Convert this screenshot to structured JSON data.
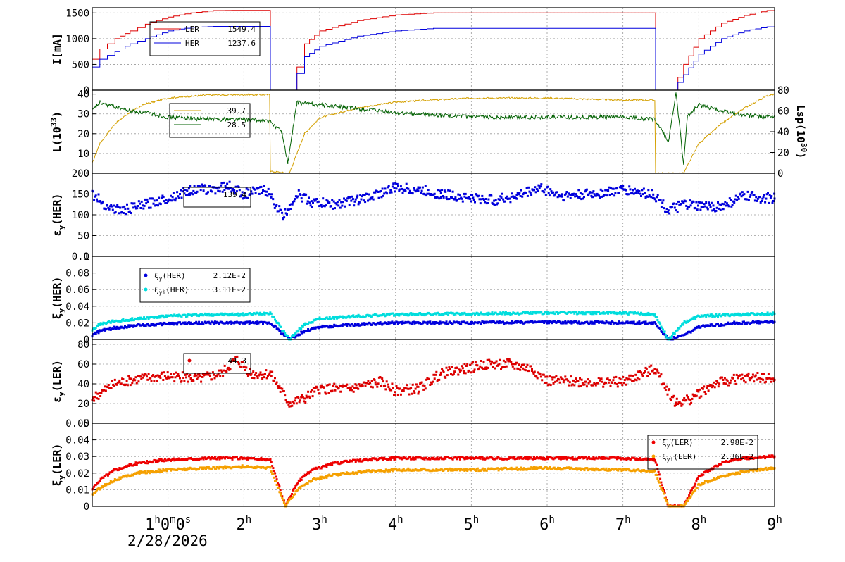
{
  "date_label": "2/28/2026",
  "chart_data": [
    {
      "type": "line",
      "ylabel": "I[mA]",
      "ylim": [
        0,
        1600
      ],
      "yticks": [
        0,
        500,
        1000,
        1500
      ],
      "legend": {
        "placement": "top-left",
        "entries": [
          {
            "name": "LER",
            "value": "1549.4"
          },
          {
            "name": "HER",
            "value": "1237.6"
          }
        ]
      },
      "colors": {
        "LER": "#dd0000",
        "HER": "#0000dd"
      },
      "series": [
        {
          "name": "LER",
          "x": [
            0.0,
            0.1,
            0.3,
            0.5,
            0.7,
            1.0,
            1.3,
            1.6,
            2.0,
            2.34,
            2.35,
            2.6,
            2.8,
            3.0,
            3.5,
            4.0,
            4.5,
            5.0,
            6.0,
            7.0,
            7.42,
            7.43,
            7.65,
            7.8,
            8.0,
            8.3,
            8.6,
            8.9,
            9.0
          ],
          "y": [
            600,
            800,
            1000,
            1150,
            1280,
            1420,
            1500,
            1545,
            1549,
            1549,
            0,
            0,
            900,
            1150,
            1350,
            1460,
            1500,
            1500,
            1500,
            1500,
            1500,
            0,
            0,
            500,
            1000,
            1300,
            1450,
            1545,
            1549
          ]
        },
        {
          "name": "HER",
          "x": [
            0.0,
            0.1,
            0.3,
            0.5,
            0.7,
            1.0,
            1.3,
            1.6,
            2.0,
            2.34,
            2.35,
            2.6,
            2.8,
            3.0,
            3.5,
            4.0,
            4.5,
            5.0,
            6.0,
            7.0,
            7.42,
            7.43,
            7.65,
            7.8,
            8.0,
            8.3,
            8.6,
            8.9,
            9.0
          ],
          "y": [
            450,
            600,
            750,
            900,
            1000,
            1150,
            1220,
            1237,
            1237,
            1237,
            0,
            0,
            650,
            850,
            1050,
            1150,
            1200,
            1200,
            1200,
            1200,
            1200,
            0,
            0,
            300,
            700,
            1000,
            1150,
            1230,
            1237
          ]
        }
      ]
    },
    {
      "type": "line",
      "ylabel": "L(10^33)",
      "ylabel_right": "Lsp(10^30)",
      "ylim": [
        0,
        42
      ],
      "ylim_right": [
        0,
        80
      ],
      "yticks": [
        0,
        10,
        20,
        30,
        40
      ],
      "yticks_right": [
        0,
        20,
        40,
        60,
        80
      ],
      "legend": {
        "placement": "top-left",
        "entries": [
          {
            "name": "",
            "value": "39.7"
          },
          {
            "name": "",
            "value": "28.5"
          }
        ]
      },
      "colors": {
        "L": "#d4a000",
        "Lsp": "#006000"
      },
      "series": [
        {
          "name": "L",
          "x": [
            0.0,
            0.1,
            0.3,
            0.5,
            0.7,
            1.0,
            1.5,
            2.0,
            2.34,
            2.35,
            2.6,
            2.8,
            3.0,
            3.5,
            4.0,
            5.0,
            6.0,
            7.0,
            7.42,
            7.43,
            7.8,
            8.0,
            8.3,
            8.6,
            8.9,
            9.0
          ],
          "y": [
            5,
            15,
            25,
            31,
            35,
            38,
            39.5,
            39.7,
            39.7,
            1,
            0,
            20,
            28,
            33,
            36,
            38,
            38,
            37,
            37,
            0,
            0,
            15,
            25,
            33,
            39,
            40
          ]
        },
        {
          "name": "Lsp",
          "x": [
            0.0,
            0.1,
            0.3,
            0.5,
            0.8,
            1.0,
            1.5,
            2.0,
            2.34,
            2.5,
            2.58,
            2.7,
            3.0,
            3.5,
            4.0,
            5.0,
            6.0,
            7.0,
            7.42,
            7.6,
            7.7,
            7.8,
            7.85,
            8.0,
            8.3,
            8.6,
            9.0
          ],
          "y": [
            60,
            68,
            64,
            60,
            57,
            54,
            52,
            52,
            50,
            40,
            10,
            68,
            66,
            62,
            58,
            54,
            54,
            54,
            52,
            30,
            78,
            8,
            55,
            66,
            60,
            56,
            54
          ]
        }
      ]
    },
    {
      "type": "scatter",
      "ylabel": "εy(HER)",
      "ylim": [
        0,
        200
      ],
      "yticks": [
        0,
        50,
        100,
        150,
        200
      ],
      "legend": {
        "placement": "top-left",
        "entries": [
          {
            "name": "",
            "value": "139.4"
          }
        ]
      },
      "colors": {
        "main": "#0000dd"
      },
      "series": [
        {
          "name": "",
          "x": [
            0.0,
            0.2,
            0.4,
            0.7,
            1.0,
            1.3,
            1.6,
            1.8,
            2.0,
            2.3,
            2.52,
            2.7,
            2.9,
            3.2,
            3.6,
            4.0,
            4.3,
            4.6,
            5.0,
            5.3,
            5.6,
            5.9,
            6.2,
            6.6,
            7.0,
            7.4,
            7.6,
            7.8,
            8.0,
            8.3,
            8.6,
            9.0
          ],
          "y": [
            150,
            120,
            110,
            125,
            140,
            160,
            162,
            170,
            150,
            160,
            95,
            150,
            130,
            125,
            140,
            165,
            160,
            150,
            140,
            135,
            145,
            165,
            145,
            150,
            160,
            150,
            110,
            125,
            120,
            120,
            145,
            139
          ]
        }
      ]
    },
    {
      "type": "scatter",
      "ylabel": "ξy(HER)",
      "ylim": [
        0,
        0.1
      ],
      "yticks": [
        0,
        0.02,
        0.04,
        0.06,
        0.08,
        0.1
      ],
      "ytick_labels": [
        "0",
        "0.02",
        "0.04",
        "0.06",
        "0.08",
        "0.1"
      ],
      "legend": {
        "placement": "top-left",
        "entries": [
          {
            "name": "ξy(HER)",
            "value": "2.12E-2"
          },
          {
            "name": "ξyi(HER)",
            "value": "3.11E-2"
          }
        ]
      },
      "colors": {
        "xi": "#0000dd",
        "xii": "#00dddd"
      },
      "series": [
        {
          "name": "ξy(HER)",
          "x": [
            0.0,
            0.1,
            0.3,
            0.6,
            1.0,
            1.5,
            2.0,
            2.35,
            2.6,
            2.8,
            3.0,
            3.5,
            4.0,
            5.0,
            6.0,
            7.0,
            7.42,
            7.6,
            7.8,
            8.0,
            8.5,
            9.0
          ],
          "y": [
            0.005,
            0.01,
            0.014,
            0.017,
            0.019,
            0.02,
            0.02,
            0.02,
            0.0,
            0.01,
            0.015,
            0.018,
            0.02,
            0.02,
            0.021,
            0.02,
            0.02,
            0.0,
            0.005,
            0.015,
            0.02,
            0.021
          ]
        },
        {
          "name": "ξyi(HER)",
          "x": [
            0.0,
            0.1,
            0.3,
            0.6,
            1.0,
            1.5,
            2.0,
            2.35,
            2.6,
            2.8,
            3.0,
            3.5,
            4.0,
            5.0,
            6.0,
            7.0,
            7.42,
            7.6,
            7.8,
            8.0,
            8.5,
            9.0
          ],
          "y": [
            0.012,
            0.018,
            0.022,
            0.025,
            0.028,
            0.03,
            0.03,
            0.032,
            0.0,
            0.018,
            0.025,
            0.028,
            0.03,
            0.031,
            0.032,
            0.032,
            0.03,
            0.0,
            0.02,
            0.028,
            0.03,
            0.031
          ]
        }
      ]
    },
    {
      "type": "scatter",
      "ylabel": "εy(LER)",
      "ylim": [
        0,
        85
      ],
      "yticks": [
        0,
        20,
        40,
        60,
        80
      ],
      "legend": {
        "placement": "top-left",
        "entries": [
          {
            "name": "",
            "value": "44.3"
          }
        ]
      },
      "colors": {
        "main": "#dd0000"
      },
      "series": [
        {
          "name": "",
          "x": [
            0.0,
            0.3,
            0.6,
            1.0,
            1.4,
            1.7,
            1.9,
            2.1,
            2.35,
            2.6,
            2.8,
            3.0,
            3.4,
            3.8,
            4.0,
            4.3,
            4.6,
            4.9,
            5.2,
            5.5,
            5.8,
            6.0,
            6.5,
            7.0,
            7.42,
            7.7,
            7.9,
            8.2,
            8.5,
            8.8,
            9.0
          ],
          "y": [
            25,
            40,
            45,
            48,
            45,
            50,
            65,
            50,
            50,
            20,
            25,
            35,
            35,
            42,
            33,
            35,
            50,
            55,
            60,
            60,
            55,
            43,
            42,
            42,
            55,
            20,
            25,
            40,
            45,
            47,
            44
          ]
        }
      ]
    },
    {
      "type": "scatter",
      "ylabel": "ξy(LER)",
      "ylim": [
        0,
        0.05
      ],
      "yticks": [
        0,
        0.01,
        0.02,
        0.03,
        0.04,
        0.05
      ],
      "ytick_labels": [
        "0",
        "0.01",
        "0.02",
        "0.03",
        "0.04",
        "0.05"
      ],
      "legend": {
        "placement": "top-right",
        "entries": [
          {
            "name": "ξy(LER)",
            "value": "2.98E-2"
          },
          {
            "name": "ξyi(LER)",
            "value": "2.36E-2"
          }
        ]
      },
      "colors": {
        "xi": "#ee0000",
        "xii": "#f5a000"
      },
      "series": [
        {
          "name": "ξy(LER)",
          "x": [
            0.0,
            0.1,
            0.3,
            0.6,
            1.0,
            1.5,
            2.0,
            2.35,
            2.55,
            2.7,
            2.9,
            3.2,
            3.6,
            4.0,
            5.0,
            6.0,
            7.0,
            7.42,
            7.6,
            7.8,
            8.0,
            8.3,
            8.6,
            9.0
          ],
          "y": [
            0.01,
            0.016,
            0.022,
            0.026,
            0.028,
            0.029,
            0.029,
            0.028,
            0.0,
            0.014,
            0.022,
            0.026,
            0.028,
            0.029,
            0.029,
            0.029,
            0.029,
            0.028,
            0.0,
            0.0,
            0.018,
            0.026,
            0.029,
            0.03
          ]
        },
        {
          "name": "ξyi(LER)",
          "x": [
            0.0,
            0.1,
            0.3,
            0.6,
            1.0,
            1.5,
            2.0,
            2.35,
            2.55,
            2.7,
            2.9,
            3.2,
            3.6,
            4.0,
            5.0,
            6.0,
            7.0,
            7.42,
            7.6,
            7.8,
            8.0,
            8.3,
            8.6,
            9.0
          ],
          "y": [
            0.007,
            0.011,
            0.016,
            0.02,
            0.022,
            0.023,
            0.024,
            0.023,
            0.0,
            0.01,
            0.016,
            0.019,
            0.021,
            0.022,
            0.022,
            0.023,
            0.022,
            0.021,
            0.0,
            0.0,
            0.013,
            0.018,
            0.021,
            0.023
          ]
        }
      ]
    }
  ],
  "x_axis": {
    "xlim": [
      0,
      9
    ],
    "ticks": [
      {
        "x": 1,
        "label": "1",
        "sup": "h",
        "extra": "0",
        "sup2": "m",
        "extra2": "0",
        "sup3": "s"
      },
      {
        "x": 2,
        "label": "2",
        "sup": "h"
      },
      {
        "x": 3,
        "label": "3",
        "sup": "h"
      },
      {
        "x": 4,
        "label": "4",
        "sup": "h"
      },
      {
        "x": 5,
        "label": "5",
        "sup": "h"
      },
      {
        "x": 6,
        "label": "6",
        "sup": "h"
      },
      {
        "x": 7,
        "label": "7",
        "sup": "h"
      },
      {
        "x": 8,
        "label": "8",
        "sup": "h"
      },
      {
        "x": 9,
        "label": "9",
        "sup": "h"
      }
    ]
  }
}
